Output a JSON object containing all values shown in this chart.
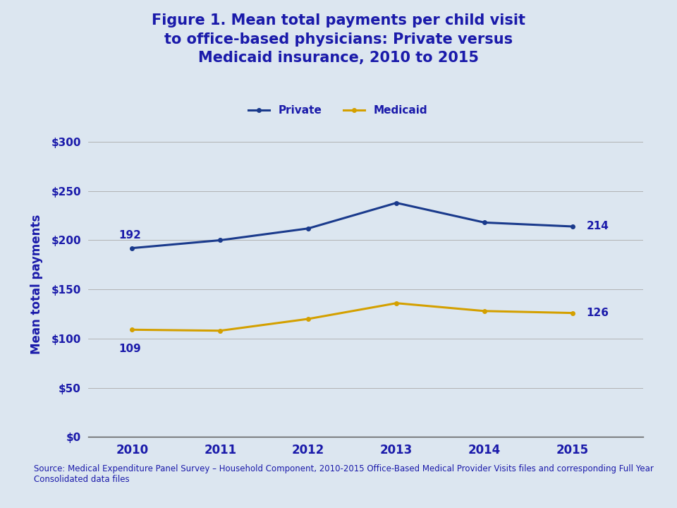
{
  "title_line1": "Figure 1. Mean total payments per child visit",
  "title_line2": "to office-based physicians: Private versus",
  "title_line3": "Medicaid insurance, 2010 to 2015",
  "title_color": "#1a1aaa",
  "title_fontsize": 15,
  "years": [
    2010,
    2011,
    2012,
    2013,
    2014,
    2015
  ],
  "private_values": [
    192,
    200,
    212,
    238,
    218,
    214
  ],
  "medicaid_values": [
    109,
    108,
    120,
    136,
    128,
    126
  ],
  "private_color": "#1a3a8c",
  "medicaid_color": "#d4a000",
  "ylabel": "Mean total payments",
  "ylabel_color": "#1a1aaa",
  "ylabel_fontsize": 12,
  "ytick_labels": [
    "$0",
    "$50",
    "$100",
    "$150",
    "$200",
    "$250",
    "$300"
  ],
  "ytick_values": [
    0,
    50,
    100,
    150,
    200,
    250,
    300
  ],
  "ylim": [
    0,
    310
  ],
  "tick_color": "#1a1aaa",
  "tick_fontsize": 11,
  "xtick_fontsize": 12,
  "annotation_fontsize": 11,
  "annotation_color": "#1a1aaa",
  "legend_labels": [
    "Private",
    "Medicaid"
  ],
  "legend_fontsize": 11,
  "legend_color": "#1a1aaa",
  "background_color": "#dce6f0",
  "plot_bg_color": "#dce6f0",
  "header_bg_color": "#c5d5e8",
  "source_text": "Source: Medical Expenditure Panel Survey – Household Component, 2010-2015 Office-Based Medical Provider Visits files and corresponding Full Year\nConsolidated data files",
  "source_fontsize": 8.5,
  "source_color": "#1a1aaa",
  "line_width": 2.2,
  "grid_color": "#aaaaaa",
  "spine_color": "#555555",
  "separator_color": "#8899aa"
}
